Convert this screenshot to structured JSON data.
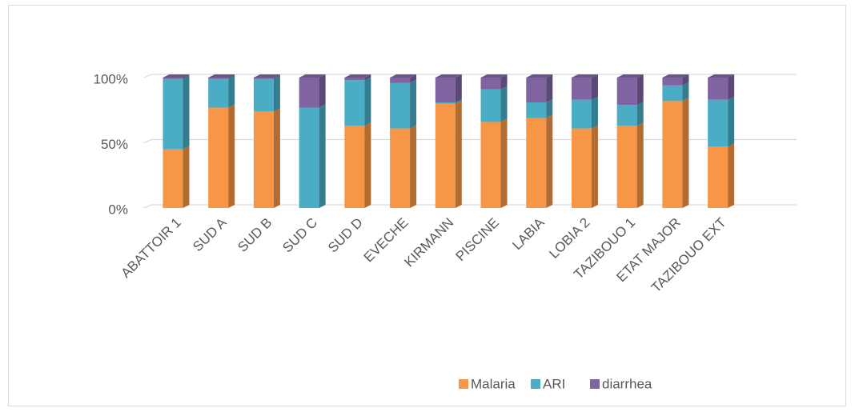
{
  "chart_data": {
    "type": "stacked-bar-3d",
    "categories": [
      "ABATTOIR  1",
      "SUD A",
      "SUD B",
      "SUD C",
      "SUD D",
      "EVECHE",
      "KIRMANN",
      "PISCINE",
      "LABIA",
      "LOBIA 2",
      "TAZIBOUO 1",
      "ETAT MAJOR",
      "TAZIBOUO EXT"
    ],
    "series": [
      {
        "name": "Malaria",
        "color": "#f79646",
        "values": [
          45,
          77,
          74,
          0,
          63,
          61,
          80,
          66,
          69,
          61,
          63,
          82,
          47
        ]
      },
      {
        "name": "ARI",
        "color": "#4bacc6",
        "values": [
          54,
          22,
          25,
          77,
          35,
          35,
          1,
          25,
          12,
          22,
          16,
          12,
          36
        ]
      },
      {
        "name": "diarrhea",
        "color": "#8064a2",
        "values": [
          1,
          1,
          1,
          23,
          2,
          4,
          19,
          9,
          19,
          17,
          21,
          6,
          17
        ]
      }
    ],
    "ylim": [
      0,
      100
    ],
    "yticks": [
      {
        "value": 0,
        "label": "0%"
      },
      {
        "value": 50,
        "label": "50%"
      },
      {
        "value": 100,
        "label": "100%"
      }
    ],
    "grid": true,
    "legend": "bottom"
  }
}
